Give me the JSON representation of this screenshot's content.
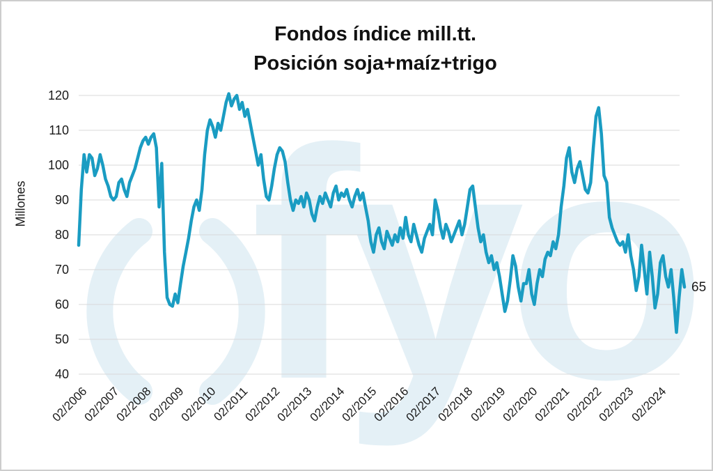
{
  "title": {
    "line1": "Fondos índice mill.tt.",
    "line2": "Posición soja+maíz+trigo"
  },
  "watermark": {
    "mark": "()",
    "text": "fyo",
    "color": "#e4f0f6"
  },
  "chart_data": {
    "type": "line",
    "title": "Fondos índice mill.tt. Posición soja+maíz+trigo",
    "ylabel": "Millones",
    "xlabel": "",
    "ylim": [
      40,
      120
    ],
    "yticks": [
      120,
      110,
      100,
      90,
      80,
      70,
      60,
      50,
      40
    ],
    "grid": true,
    "x_tick_labels": [
      "02/2006",
      "02/2007",
      "02/2008",
      "02/2009",
      "02/2010",
      "02/2011",
      "02/2012",
      "02/2013",
      "02/2014",
      "02/2015",
      "02/2016",
      "02/2017",
      "02/2018",
      "02/2019",
      "02/2020",
      "02/2021",
      "02/2022",
      "02/2023",
      "02/2024"
    ],
    "x_unit": "month",
    "x_range": [
      "02/2006",
      "12/2024"
    ],
    "last_value_label": "65",
    "line_color": "#1a9cc2",
    "gridline_color": "#d9d9d9",
    "series": [
      {
        "name": "Posición soja+maíz+trigo",
        "values": [
          77,
          93,
          103,
          98,
          103,
          102,
          97,
          99,
          103,
          100,
          96,
          94,
          91,
          90,
          91,
          95,
          96,
          93,
          91,
          95,
          97,
          99,
          102,
          105,
          107,
          108,
          106,
          108,
          109,
          105,
          88,
          100.5,
          75,
          62,
          60,
          59.5,
          63,
          60.5,
          66,
          71,
          75,
          79,
          84,
          88,
          90,
          87,
          93,
          103,
          110,
          113,
          111,
          108,
          112,
          110,
          114,
          118,
          120.5,
          117,
          119,
          120,
          116,
          118,
          114,
          116,
          112,
          108,
          104,
          100,
          103,
          96,
          91,
          90,
          94,
          99,
          103,
          105,
          104,
          101,
          95,
          90,
          87,
          90,
          89,
          91,
          88,
          92,
          90,
          86,
          84,
          88,
          91,
          89,
          92,
          90,
          88,
          92,
          94,
          90,
          92,
          91,
          93,
          90,
          88,
          91,
          93,
          90,
          92,
          88,
          84,
          78,
          75,
          80,
          82,
          78,
          76,
          81,
          79,
          77,
          80,
          78,
          82,
          79,
          85,
          80,
          78,
          83,
          80,
          77,
          75,
          79,
          81,
          83,
          80,
          90,
          87,
          82,
          79,
          83,
          81,
          78,
          80,
          82,
          84,
          80,
          83,
          88,
          93,
          94,
          88,
          82,
          78,
          80,
          75,
          72,
          74,
          70,
          72,
          68,
          63,
          58,
          61,
          67,
          74,
          71,
          65,
          61,
          66,
          66,
          70,
          63,
          60,
          66,
          70,
          68,
          73,
          75,
          74,
          78,
          76,
          80,
          88,
          94,
          102,
          105,
          98,
          95,
          99,
          101,
          97,
          93,
          92,
          95,
          105,
          114,
          116.5,
          109,
          97,
          95,
          85,
          82,
          80,
          78,
          77,
          78,
          75,
          80,
          74,
          70,
          64,
          68,
          77,
          70,
          63,
          75,
          68,
          59,
          63,
          72,
          74,
          68,
          65,
          70,
          62,
          52,
          62,
          70,
          65
        ]
      }
    ]
  }
}
